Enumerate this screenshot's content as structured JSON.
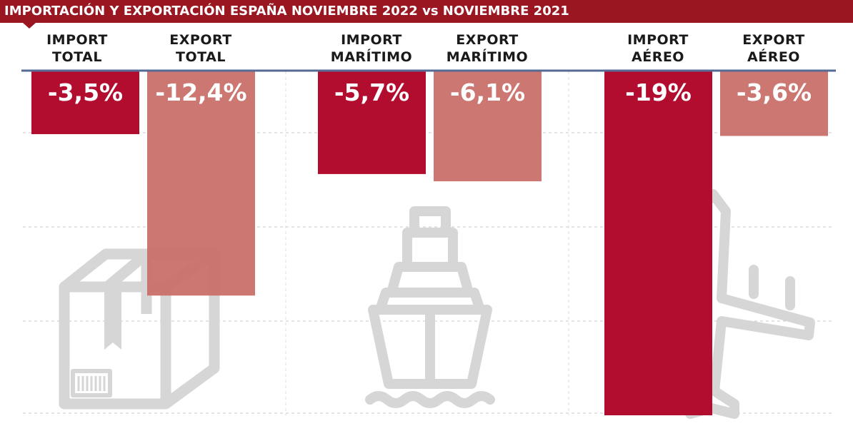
{
  "title": "IMPORTACIÓN Y EXPORTACIÓN ESPAÑA NOVIEMBRE 2022 vs NOVIEMBRE 2021",
  "colors": {
    "title_bg": "#9a1722",
    "import": "#b20d2f",
    "export": "#c9706a",
    "axis": "#566a94"
  },
  "icons": [
    "box-icon",
    "ship-icon",
    "airplane-icon"
  ],
  "chart_data": {
    "type": "bar",
    "categories": [
      {
        "line1": "IMPORT",
        "line2": "TOTAL"
      },
      {
        "line1": "EXPORT",
        "line2": "TOTAL"
      },
      {
        "line1": "IMPORT",
        "line2": "MARÍTIMO"
      },
      {
        "line1": "EXPORT",
        "line2": "MARÍTIMO"
      },
      {
        "line1": "IMPORT",
        "line2": "AÉREO"
      },
      {
        "line1": "EXPORT",
        "line2": "AÉREO"
      }
    ],
    "values": [
      -3.5,
      -12.4,
      -5.7,
      -6.1,
      -19,
      -3.6
    ],
    "value_labels": [
      "-3,5%",
      "-12,4%",
      "-5,7%",
      "-6,1%",
      "-19%",
      "-3,6%"
    ],
    "ylim": [
      -19,
      0
    ],
    "grid": true
  }
}
